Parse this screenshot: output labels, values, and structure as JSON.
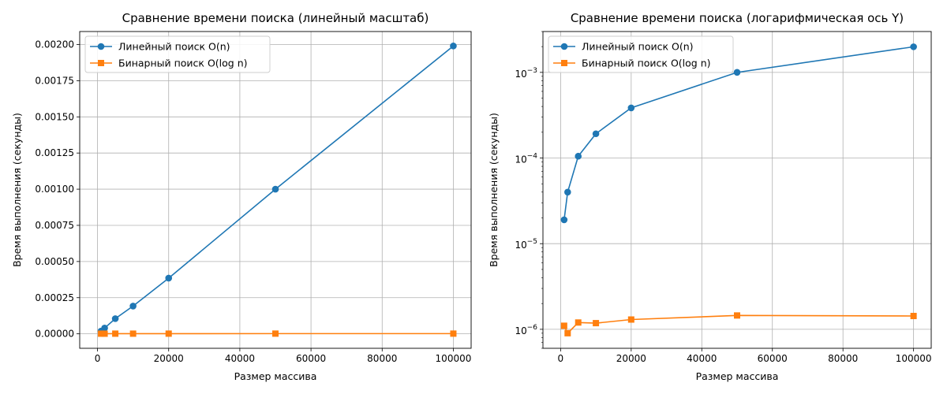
{
  "chart_data": [
    {
      "type": "line",
      "title": "Сравнение времени поиска (линейный масштаб)",
      "xlabel": "Размер массива",
      "ylabel": "Время выполнения (секунды)",
      "yscale": "linear",
      "xlim": [
        -5000,
        105000
      ],
      "ylim": [
        -0.0001,
        0.00209
      ],
      "xticks": [
        0,
        20000,
        40000,
        60000,
        80000,
        100000
      ],
      "xticklabels": [
        "0",
        "20000",
        "40000",
        "60000",
        "80000",
        "100000"
      ],
      "yticks": [
        0,
        0.00025,
        0.0005,
        0.00075,
        0.001,
        0.00125,
        0.0015,
        0.00175,
        0.002
      ],
      "yticklabels": [
        "0.00000",
        "0.00025",
        "0.00050",
        "0.00075",
        "0.00100",
        "0.00125",
        "0.00150",
        "0.00175",
        "0.00200"
      ],
      "grid": true,
      "legend": "top-left",
      "x": [
        1000,
        2000,
        5000,
        10000,
        20000,
        50000,
        100000
      ],
      "series": [
        {
          "name": "Линейный поиск O(n)",
          "color": "#1f77b4",
          "marker": "circle",
          "values": [
            1.9e-05,
            4e-05,
            0.000105,
            0.000192,
            0.000385,
            0.001,
            0.00199
          ]
        },
        {
          "name": "Бинарный поиск O(log n)",
          "color": "#ff7f0e",
          "marker": "square",
          "values": [
            1.1e-06,
            9e-07,
            1.2e-06,
            1.18e-06,
            1.3e-06,
            1.45e-06,
            1.43e-06
          ]
        }
      ]
    },
    {
      "type": "line",
      "title": "Сравнение времени поиска (логарифмическая ось Y)",
      "xlabel": "Размер массива",
      "ylabel": "Время выполнения (секунды)",
      "yscale": "log",
      "xlim": [
        -5000,
        105000
      ],
      "ylim": [
        6e-07,
        0.003
      ],
      "xticks": [
        0,
        20000,
        40000,
        60000,
        80000,
        100000
      ],
      "xticklabels": [
        "0",
        "20000",
        "40000",
        "60000",
        "80000",
        "100000"
      ],
      "yticks": [
        1e-06,
        1e-05,
        0.0001,
        0.001
      ],
      "yticklabels_base": [
        "10",
        "10",
        "10",
        "10"
      ],
      "yticklabels_exp": [
        "−6",
        "−5",
        "−4",
        "−3"
      ],
      "grid": true,
      "legend": "top-left",
      "x": [
        1000,
        2000,
        5000,
        10000,
        20000,
        50000,
        100000
      ],
      "series": [
        {
          "name": "Линейный поиск O(n)",
          "color": "#1f77b4",
          "marker": "circle",
          "values": [
            1.9e-05,
            4e-05,
            0.000105,
            0.000192,
            0.000385,
            0.001,
            0.00199
          ]
        },
        {
          "name": "Бинарный поиск O(log n)",
          "color": "#ff7f0e",
          "marker": "square",
          "values": [
            1.1e-06,
            9e-07,
            1.2e-06,
            1.18e-06,
            1.3e-06,
            1.45e-06,
            1.43e-06
          ]
        }
      ]
    }
  ]
}
